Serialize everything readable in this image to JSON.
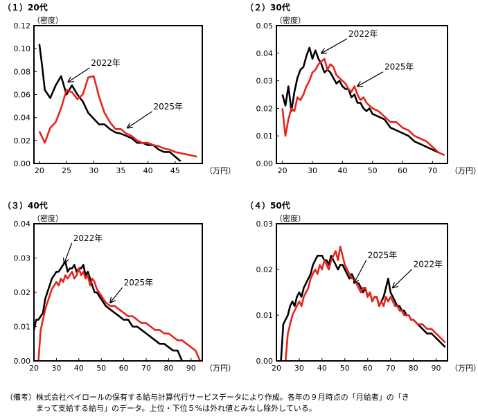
{
  "colors": {
    "y2022": "#000000",
    "y2025": "#e8231b"
  },
  "note": "（備考）株式会社ペイロールの保有する給与計算代行サービスデータにより作成。各年の９月時点の「月給者」の「き\n　　　　まって支給する給与」のデータ。上位・下位５%は外れ値とみなし除外している。",
  "chart_data": [
    {
      "type": "line",
      "title": "（１）20代",
      "ylabel": "（密度）",
      "xlabel": "（万円）",
      "xlim": [
        19,
        50
      ],
      "ylim": [
        0,
        0.12
      ],
      "xticks": [
        20,
        25,
        30,
        35,
        40,
        45
      ],
      "xtick_labels": [
        "20",
        "25",
        "30",
        "35",
        "40",
        "45"
      ],
      "yticks": [
        0,
        0.02,
        0.04,
        0.06,
        0.08,
        0.1,
        0.12
      ],
      "ytick_labels": [
        "0.00",
        "0.02",
        "0.04",
        "0.06",
        "0.08",
        "0.10",
        "0.12"
      ],
      "series": [
        {
          "name": "2022年",
          "color": "#000000",
          "x": [
            20,
            20.5,
            21,
            22,
            23,
            24,
            25,
            26,
            27,
            28,
            29,
            30,
            31,
            32,
            33,
            34,
            35,
            36,
            37,
            38,
            39,
            40,
            41,
            42,
            43,
            44,
            45,
            46
          ],
          "values": [
            0.104,
            0.085,
            0.064,
            0.057,
            0.068,
            0.076,
            0.06,
            0.068,
            0.06,
            0.054,
            0.044,
            0.039,
            0.034,
            0.034,
            0.03,
            0.027,
            0.026,
            0.024,
            0.022,
            0.018,
            0.018,
            0.016,
            0.016,
            0.012,
            0.01,
            0.01,
            0.006,
            0.002
          ]
        },
        {
          "name": "2025年",
          "color": "#e8231b",
          "x": [
            20,
            21,
            22,
            23,
            24,
            25,
            26,
            27,
            28,
            29,
            30,
            31,
            32,
            33,
            34,
            35,
            36,
            37,
            38,
            39,
            40,
            41,
            42,
            43,
            44,
            45,
            46,
            47,
            48,
            49
          ],
          "values": [
            0.028,
            0.018,
            0.031,
            0.036,
            0.048,
            0.064,
            0.062,
            0.056,
            0.06,
            0.075,
            0.076,
            0.058,
            0.044,
            0.036,
            0.03,
            0.03,
            0.026,
            0.024,
            0.02,
            0.018,
            0.018,
            0.016,
            0.015,
            0.013,
            0.012,
            0.01,
            0.009,
            0.008,
            0.007,
            0.006
          ]
        }
      ],
      "annotations": [
        {
          "text": "2022年",
          "anchor": [
            29.5,
            0.085
          ],
          "target": [
            25.3,
            0.071
          ]
        },
        {
          "text": "2025年",
          "anchor": [
            41,
            0.047
          ],
          "target": [
            36.2,
            0.031
          ]
        }
      ]
    },
    {
      "type": "line",
      "title": "（２）30代",
      "ylabel": "（密度）",
      "xlabel": "（万円）",
      "xlim": [
        18,
        75
      ],
      "ylim": [
        0,
        0.05
      ],
      "xticks": [
        20,
        30,
        40,
        50,
        60,
        70
      ],
      "xtick_labels": [
        "20",
        "30",
        "40",
        "50",
        "60",
        "70"
      ],
      "yticks": [
        0,
        0.01,
        0.02,
        0.03,
        0.04,
        0.05
      ],
      "ytick_labels": [
        "0.00",
        "0.01",
        "0.02",
        "0.03",
        "0.04",
        "0.05"
      ],
      "series": [
        {
          "name": "2022年",
          "color": "#000000",
          "x": [
            20,
            21,
            22,
            23,
            24,
            25,
            26,
            27,
            28,
            29,
            30,
            31,
            32,
            33,
            34,
            35,
            36,
            37,
            38,
            39,
            40,
            41,
            42,
            43,
            44,
            45,
            46,
            47,
            48,
            49,
            50,
            52,
            54,
            56,
            58,
            60,
            62,
            64,
            66,
            68,
            70,
            72
          ],
          "values": [
            0.025,
            0.021,
            0.028,
            0.019,
            0.026,
            0.031,
            0.034,
            0.035,
            0.039,
            0.042,
            0.038,
            0.041,
            0.038,
            0.036,
            0.033,
            0.034,
            0.033,
            0.031,
            0.029,
            0.03,
            0.028,
            0.027,
            0.027,
            0.024,
            0.025,
            0.022,
            0.022,
            0.02,
            0.019,
            0.02,
            0.018,
            0.017,
            0.016,
            0.013,
            0.012,
            0.011,
            0.01,
            0.008,
            0.007,
            0.006,
            0.005,
            0.004
          ]
        },
        {
          "name": "2025年",
          "color": "#e8231b",
          "x": [
            20,
            21,
            22,
            23,
            24,
            25,
            26,
            27,
            28,
            29,
            30,
            31,
            32,
            33,
            34,
            35,
            36,
            37,
            38,
            39,
            40,
            41,
            42,
            43,
            44,
            45,
            46,
            47,
            48,
            49,
            50,
            52,
            54,
            56,
            58,
            60,
            62,
            64,
            66,
            68,
            70,
            72,
            74
          ],
          "values": [
            0.02,
            0.01,
            0.016,
            0.02,
            0.019,
            0.024,
            0.023,
            0.025,
            0.028,
            0.03,
            0.033,
            0.034,
            0.036,
            0.037,
            0.038,
            0.034,
            0.036,
            0.035,
            0.032,
            0.031,
            0.03,
            0.029,
            0.027,
            0.026,
            0.028,
            0.025,
            0.023,
            0.024,
            0.022,
            0.021,
            0.02,
            0.019,
            0.017,
            0.015,
            0.015,
            0.013,
            0.012,
            0.01,
            0.009,
            0.008,
            0.006,
            0.004,
            0.003
          ]
        }
      ],
      "annotations": [
        {
          "text": "2022年",
          "anchor": [
            42,
            0.046
          ],
          "target": [
            33,
            0.04
          ]
        },
        {
          "text": "2025年",
          "anchor": [
            54,
            0.034
          ],
          "target": [
            45,
            0.028
          ]
        }
      ]
    },
    {
      "type": "line",
      "title": "（３）40代",
      "ylabel": "（密度）",
      "xlabel": "（万円）",
      "xlim": [
        20,
        95
      ],
      "ylim": [
        0,
        0.04
      ],
      "xticks": [
        20,
        30,
        40,
        50,
        60,
        70,
        80,
        90
      ],
      "xtick_labels": [
        "20",
        "30",
        "40",
        "50",
        "60",
        "70",
        "80",
        "90"
      ],
      "yticks": [
        0,
        0.01,
        0.02,
        0.03,
        0.04
      ],
      "ytick_labels": [
        "0.00",
        "0.01",
        "0.02",
        "0.03",
        "0.04"
      ],
      "series": [
        {
          "name": "2022年",
          "color": "#000000",
          "x": [
            20,
            21,
            22,
            23,
            24,
            25,
            26,
            27,
            28,
            29,
            30,
            31,
            32,
            33,
            34,
            35,
            36,
            37,
            38,
            39,
            40,
            41,
            42,
            43,
            44,
            45,
            46,
            47,
            48,
            50,
            52,
            54,
            56,
            58,
            60,
            62,
            64,
            66,
            68,
            70,
            72,
            74,
            76,
            78,
            80,
            82,
            84,
            86
          ],
          "values": [
            0.009,
            0.012,
            0.012,
            0.013,
            0.014,
            0.018,
            0.02,
            0.022,
            0.024,
            0.025,
            0.026,
            0.026,
            0.027,
            0.028,
            0.029,
            0.026,
            0.027,
            0.027,
            0.028,
            0.026,
            0.027,
            0.027,
            0.028,
            0.025,
            0.026,
            0.024,
            0.022,
            0.02,
            0.02,
            0.018,
            0.016,
            0.015,
            0.014,
            0.013,
            0.012,
            0.012,
            0.01,
            0.01,
            0.009,
            0.008,
            0.007,
            0.006,
            0.005,
            0.005,
            0.004,
            0.003,
            0.003,
            0.0
          ]
        },
        {
          "name": "2025年",
          "color": "#e8231b",
          "x": [
            22,
            23,
            24,
            25,
            26,
            27,
            28,
            29,
            30,
            31,
            32,
            33,
            34,
            35,
            36,
            37,
            38,
            39,
            40,
            41,
            42,
            43,
            44,
            45,
            46,
            47,
            48,
            50,
            52,
            54,
            56,
            58,
            60,
            62,
            64,
            66,
            68,
            70,
            72,
            74,
            76,
            78,
            80,
            82,
            84,
            86,
            88,
            90,
            92,
            94
          ],
          "values": [
            0.0,
            0.009,
            0.012,
            0.015,
            0.017,
            0.019,
            0.021,
            0.022,
            0.023,
            0.022,
            0.024,
            0.023,
            0.025,
            0.024,
            0.025,
            0.026,
            0.024,
            0.025,
            0.027,
            0.025,
            0.026,
            0.024,
            0.025,
            0.022,
            0.024,
            0.023,
            0.021,
            0.019,
            0.017,
            0.016,
            0.016,
            0.015,
            0.014,
            0.013,
            0.013,
            0.012,
            0.011,
            0.011,
            0.01,
            0.009,
            0.009,
            0.008,
            0.008,
            0.007,
            0.006,
            0.006,
            0.005,
            0.004,
            0.003,
            0.0
          ]
        }
      ],
      "annotations": [
        {
          "text": "2022年",
          "anchor": [
            37.5,
            0.035
          ],
          "target": [
            33.5,
            0.0285
          ]
        },
        {
          "text": "2025年",
          "anchor": [
            60,
            0.022
          ],
          "target": [
            54,
            0.017
          ]
        }
      ]
    },
    {
      "type": "line",
      "title": "（４）50代",
      "ylabel": "（密度）",
      "xlabel": "（万円）",
      "xlim": [
        20,
        95
      ],
      "ylim": [
        0,
        0.03
      ],
      "xticks": [
        20,
        30,
        40,
        50,
        60,
        70,
        80,
        90
      ],
      "xtick_labels": [
        "20",
        "30",
        "40",
        "50",
        "60",
        "70",
        "80",
        "90"
      ],
      "yticks": [
        0,
        0.01,
        0.02,
        0.03
      ],
      "ytick_labels": [
        "0.00",
        "0.01",
        "0.02",
        "0.03"
      ],
      "series": [
        {
          "name": "2022年",
          "color": "#000000",
          "x": [
            22,
            23,
            24,
            25,
            26,
            27,
            28,
            29,
            30,
            31,
            32,
            33,
            34,
            35,
            36,
            37,
            38,
            39,
            40,
            41,
            42,
            43,
            44,
            45,
            46,
            47,
            48,
            49,
            50,
            51,
            52,
            53,
            54,
            55,
            56,
            57,
            58,
            59,
            60,
            61,
            62,
            63,
            64,
            65,
            66,
            67,
            68,
            69,
            70,
            71,
            72,
            73,
            74,
            75,
            76,
            77,
            78,
            79,
            80,
            82,
            84,
            86,
            88,
            90,
            92,
            94
          ],
          "values": [
            0.0,
            0.008,
            0.009,
            0.01,
            0.012,
            0.013,
            0.012,
            0.014,
            0.015,
            0.014,
            0.016,
            0.017,
            0.018,
            0.019,
            0.021,
            0.022,
            0.023,
            0.023,
            0.023,
            0.022,
            0.022,
            0.021,
            0.023,
            0.022,
            0.021,
            0.02,
            0.021,
            0.021,
            0.02,
            0.019,
            0.018,
            0.019,
            0.018,
            0.017,
            0.017,
            0.016,
            0.015,
            0.016,
            0.014,
            0.015,
            0.013,
            0.014,
            0.014,
            0.012,
            0.013,
            0.014,
            0.016,
            0.018,
            0.015,
            0.014,
            0.013,
            0.012,
            0.012,
            0.011,
            0.011,
            0.01,
            0.01,
            0.009,
            0.009,
            0.008,
            0.007,
            0.006,
            0.006,
            0.005,
            0.004,
            0.003
          ]
        },
        {
          "name": "2025年",
          "color": "#e8231b",
          "x": [
            24,
            25,
            26,
            27,
            28,
            29,
            30,
            31,
            32,
            33,
            34,
            35,
            36,
            37,
            38,
            39,
            40,
            41,
            42,
            43,
            44,
            45,
            46,
            47,
            48,
            49,
            50,
            51,
            52,
            53,
            54,
            55,
            56,
            57,
            58,
            59,
            60,
            61,
            62,
            63,
            64,
            65,
            66,
            67,
            68,
            69,
            70,
            71,
            72,
            73,
            74,
            75,
            76,
            77,
            78,
            79,
            80,
            82,
            84,
            86,
            88,
            90,
            92,
            94
          ],
          "values": [
            0.0,
            0.006,
            0.008,
            0.01,
            0.011,
            0.012,
            0.013,
            0.012,
            0.014,
            0.015,
            0.016,
            0.018,
            0.019,
            0.02,
            0.019,
            0.021,
            0.02,
            0.022,
            0.021,
            0.02,
            0.022,
            0.023,
            0.024,
            0.022,
            0.025,
            0.023,
            0.021,
            0.02,
            0.019,
            0.018,
            0.018,
            0.017,
            0.016,
            0.015,
            0.016,
            0.016,
            0.014,
            0.015,
            0.013,
            0.014,
            0.014,
            0.012,
            0.013,
            0.012,
            0.014,
            0.013,
            0.014,
            0.013,
            0.012,
            0.012,
            0.011,
            0.011,
            0.01,
            0.01,
            0.01,
            0.009,
            0.009,
            0.008,
            0.008,
            0.007,
            0.007,
            0.006,
            0.005,
            0.004
          ]
        }
      ],
      "annotations": [
        {
          "text": "2025年",
          "anchor": [
            60,
            0.0225
          ],
          "target": [
            54,
            0.017
          ]
        },
        {
          "text": "2022年",
          "anchor": [
            80,
            0.0205
          ],
          "target": [
            71,
            0.016
          ]
        }
      ]
    }
  ]
}
